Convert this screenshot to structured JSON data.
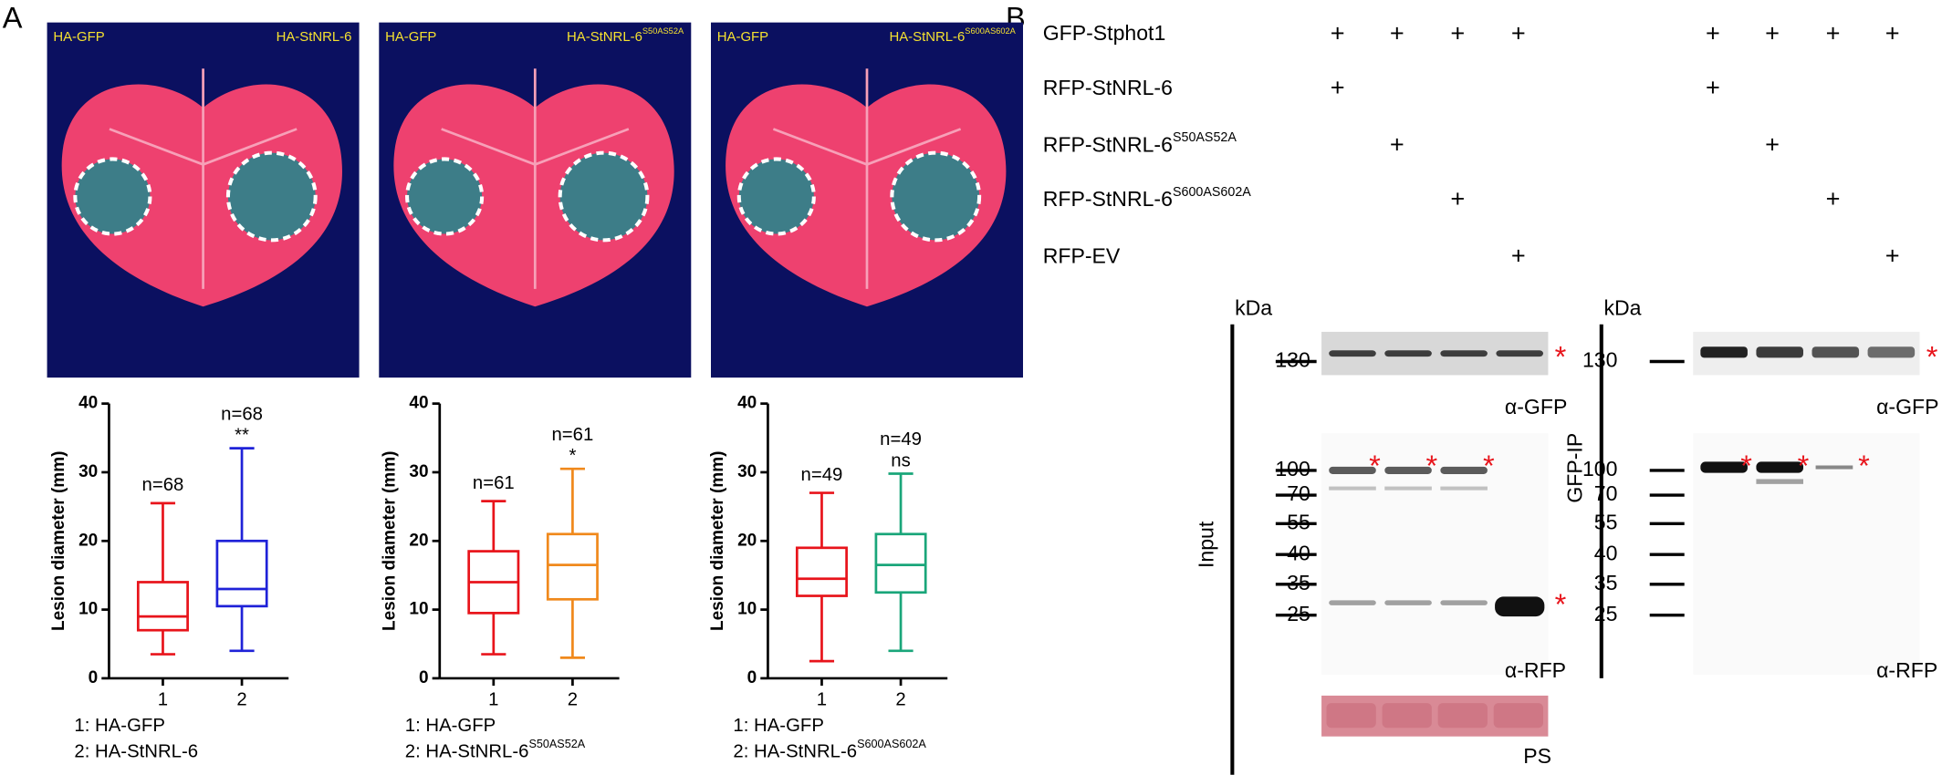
{
  "panel_a": {
    "label": "A",
    "y_axis_label": "Lesion diameter (mm)",
    "ylim": [
      0,
      40
    ],
    "yticks": [
      0,
      10,
      20,
      30,
      40
    ],
    "categories": [
      "1",
      "2"
    ],
    "subpanels": [
      {
        "photo_left": "HA-GFP",
        "photo_right": "HA-StNRL-6",
        "groups": [
          {
            "color": "#e8141b",
            "n_label": "n=68",
            "box": {
              "min": 3.5,
              "q1": 7,
              "median": 9,
              "q3": 14,
              "max": 25.5
            }
          },
          {
            "color": "#1f22d8",
            "n_label": "n=68",
            "significance": "**",
            "box": {
              "min": 4,
              "q1": 10.5,
              "median": 13,
              "q3": 20,
              "max": 33.5
            }
          }
        ],
        "legend": [
          {
            "text": "1: HA-GFP"
          },
          {
            "text": "2: HA-StNRL-6"
          }
        ]
      },
      {
        "photo_left": "HA-GFP",
        "photo_right": "HA-StNRL-6",
        "photo_right_sup": "S50AS52A",
        "groups": [
          {
            "color": "#e8141b",
            "n_label": "n=61",
            "box": {
              "min": 3.5,
              "q1": 9.5,
              "median": 14,
              "q3": 18.5,
              "max": 25.8
            }
          },
          {
            "color": "#f0891c",
            "n_label": "n=61",
            "significance": "*",
            "box": {
              "min": 3,
              "q1": 11.5,
              "median": 16.5,
              "q3": 21,
              "max": 30.5
            }
          }
        ],
        "legend": [
          {
            "text": "1: HA-GFP"
          },
          {
            "text": "2: HA-StNRL-6",
            "sup": "S50AS52A"
          }
        ]
      },
      {
        "photo_left": "HA-GFP",
        "photo_right": "HA-StNRL-6",
        "photo_right_sup": "S600AS602A",
        "groups": [
          {
            "color": "#e8141b",
            "n_label": "n=49",
            "box": {
              "min": 2.5,
              "q1": 12,
              "median": 14.5,
              "q3": 19,
              "max": 27
            }
          },
          {
            "color": "#1aa67a",
            "n_label": "n=49",
            "significance": "ns",
            "box": {
              "min": 4,
              "q1": 12.5,
              "median": 16.5,
              "q3": 21,
              "max": 29.8
            }
          }
        ],
        "legend": [
          {
            "text": "1: HA-GFP"
          },
          {
            "text": "2: HA-StNRL-6",
            "sup": "S600AS602A"
          }
        ]
      }
    ]
  },
  "panel_b": {
    "label": "B",
    "plus": "+",
    "rows": [
      {
        "label": "GFP-Stphot1",
        "cells": [
          true,
          true,
          true,
          true,
          true,
          true,
          true,
          true
        ]
      },
      {
        "label": "RFP-StNRL-6",
        "cells": [
          true,
          false,
          false,
          false,
          true,
          false,
          false,
          false
        ]
      },
      {
        "label": "RFP-StNRL-6",
        "sup": "S50AS52A",
        "cells": [
          false,
          true,
          false,
          false,
          false,
          true,
          false,
          false
        ]
      },
      {
        "label": "RFP-StNRL-6",
        "sup": "S600AS602A",
        "cells": [
          false,
          false,
          true,
          false,
          false,
          false,
          true,
          false
        ]
      },
      {
        "label": "RFP-EV",
        "cells": [
          false,
          false,
          false,
          true,
          false,
          false,
          false,
          true
        ]
      }
    ],
    "kda": "kDa",
    "asterisk": "*",
    "input": {
      "side_label": "Input",
      "gfp_markers": [
        "130"
      ],
      "gfp_antibody": "α-GFP",
      "rfp_markers": [
        "100",
        "70",
        "55",
        "40",
        "35",
        "25"
      ],
      "rfp_antibody": "α-RFP",
      "stain": "PS"
    },
    "ip": {
      "side_label": "GFP-IP",
      "gfp_markers": [
        "130"
      ],
      "gfp_antibody": "α-GFP",
      "rfp_markers": [
        "100",
        "70",
        "55",
        "40",
        "35",
        "25"
      ],
      "rfp_antibody": "α-RFP"
    }
  }
}
